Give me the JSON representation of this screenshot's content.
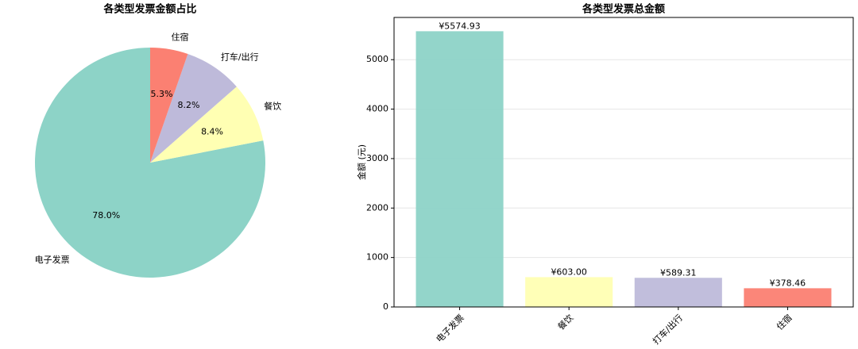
{
  "chart_data": [
    {
      "type": "pie",
      "title": "各类型发票金额占比",
      "categories": [
        "电子发票",
        "餐饮",
        "打车/出行",
        "住宿"
      ],
      "values": [
        78.0,
        8.4,
        8.2,
        5.3
      ],
      "value_labels": [
        "78.0%",
        "8.4%",
        "8.2%",
        "5.3%"
      ],
      "colors": [
        "#8dd3c7",
        "#ffffb3",
        "#bebada",
        "#fb8072"
      ]
    },
    {
      "type": "bar",
      "title": "各类型发票总金额",
      "ylabel": "金额 (元)",
      "categories": [
        "电子发票",
        "餐饮",
        "打车/出行",
        "住宿"
      ],
      "values": [
        5574.93,
        603.0,
        589.31,
        378.46
      ],
      "value_labels": [
        "¥5574.93",
        "¥603.00",
        "¥589.31",
        "¥378.46"
      ],
      "colors": [
        "#8dd3c7",
        "#ffffb3",
        "#bebada",
        "#fb8072"
      ],
      "ylim": [
        0,
        5853.68
      ],
      "yticks": [
        0,
        1000,
        2000,
        3000,
        4000,
        5000
      ],
      "grid": true
    }
  ]
}
